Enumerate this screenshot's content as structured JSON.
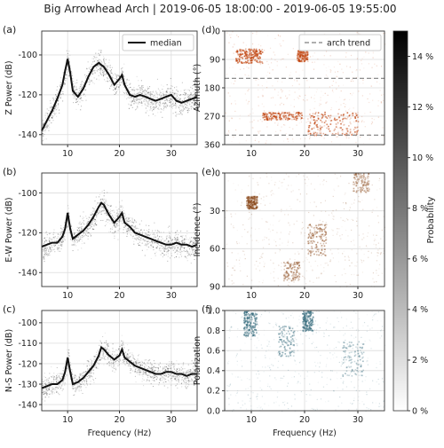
{
  "title": "Big Arrowhead Arch | 2019-06-05 18:00:00 - 2019-06-05 19:55:00",
  "colorbar": {
    "label": "Probability",
    "ticks": [
      "0 %",
      "2 %",
      "4 %",
      "6 %",
      "8 %",
      "10 %",
      "12 %",
      "14 %"
    ],
    "range": [
      0,
      15
    ]
  },
  "chart_data": [
    {
      "panel": "(a)",
      "type": "line",
      "xlabel": "",
      "ylabel": "Z Power (dB)",
      "xlim": [
        5,
        35
      ],
      "ylim": [
        -145,
        -88
      ],
      "xticks": [
        10,
        20,
        30
      ],
      "yticks": [
        -100,
        -120,
        -140
      ],
      "grid": true,
      "legend": {
        "entries": [
          "median"
        ],
        "placement": "top-right"
      },
      "color": "#111111",
      "series": [
        {
          "name": "median",
          "x": [
            5,
            6,
            7,
            8,
            9,
            9.5,
            10,
            10.5,
            11,
            12,
            13,
            14,
            15,
            16,
            16.5,
            17,
            18,
            19,
            20,
            20.5,
            21,
            22,
            23,
            24,
            25,
            26,
            27,
            28,
            29,
            30,
            31,
            32,
            33,
            34,
            35
          ],
          "y": [
            -138,
            -133,
            -128,
            -122,
            -115,
            -108,
            -102,
            -109,
            -118,
            -121,
            -117,
            -111,
            -106,
            -104,
            -105,
            -106,
            -110,
            -115,
            -112,
            -110,
            -115,
            -120,
            -121,
            -120,
            -121,
            -122,
            -123,
            -122,
            -121,
            -120,
            -123,
            -124,
            -123,
            -122,
            -121
          ]
        }
      ]
    },
    {
      "panel": "(b)",
      "type": "line",
      "xlabel": "",
      "ylabel": "E-W Power (dB)",
      "xlim": [
        5,
        35
      ],
      "ylim": [
        -147,
        -90
      ],
      "xticks": [
        10,
        20,
        30
      ],
      "yticks": [
        -100,
        -120,
        -140
      ],
      "grid": true,
      "color": "#111111",
      "series": [
        {
          "x": [
            5,
            6,
            7,
            8,
            9,
            9.5,
            10,
            10.5,
            11,
            12,
            13,
            14,
            15,
            16,
            16.5,
            17,
            18,
            19,
            20,
            20.5,
            21,
            22,
            23,
            24,
            25,
            26,
            27,
            28,
            29,
            30,
            31,
            32,
            33,
            34,
            35
          ],
          "y": [
            -127,
            -126,
            -125,
            -125,
            -122,
            -118,
            -110,
            -118,
            -123,
            -121,
            -119,
            -116,
            -112,
            -107,
            -105,
            -106,
            -111,
            -115,
            -112,
            -110,
            -115,
            -117,
            -120,
            -121,
            -122,
            -123,
            -124,
            -125,
            -126,
            -126,
            -125,
            -126,
            -126,
            -127,
            -126
          ]
        }
      ]
    },
    {
      "panel": "(c)",
      "type": "line",
      "xlabel": "Frequency (Hz)",
      "ylabel": "N-S Power (dB)",
      "xlim": [
        5,
        35
      ],
      "ylim": [
        -143,
        -94
      ],
      "xticks": [
        10,
        20,
        30
      ],
      "yticks": [
        -100,
        -110,
        -120,
        -130,
        -140
      ],
      "grid": true,
      "color": "#111111",
      "series": [
        {
          "x": [
            5,
            6,
            7,
            8,
            9,
            9.5,
            10,
            10.5,
            11,
            12,
            13,
            14,
            15,
            16,
            16.5,
            17,
            18,
            19,
            20,
            20.5,
            21,
            22,
            23,
            24,
            25,
            26,
            27,
            28,
            29,
            30,
            31,
            32,
            33,
            34,
            35
          ],
          "y": [
            -132,
            -131,
            -130,
            -130,
            -128,
            -124,
            -117,
            -124,
            -130,
            -129,
            -127,
            -124,
            -121,
            -116,
            -112,
            -113,
            -116,
            -118,
            -116,
            -113,
            -117,
            -119,
            -121,
            -122,
            -123,
            -124,
            -125,
            -125,
            -124,
            -124,
            -125,
            -125,
            -126,
            -125,
            -125
          ]
        }
      ]
    },
    {
      "panel": "(d)",
      "type": "heatmap",
      "xlabel": "",
      "ylabel": "Azimuth (°)",
      "xlim": [
        5,
        35
      ],
      "ylim": [
        360,
        0
      ],
      "xticks": [
        10,
        20,
        30
      ],
      "yticks": [
        0,
        90,
        180,
        270,
        360
      ],
      "grid": true,
      "color": "#c1440e",
      "legend": {
        "entries": [
          "arch trend"
        ],
        "placement": "top-right"
      },
      "reference_lines": [
        {
          "name": "arch trend",
          "y": [
            150,
            330
          ],
          "style": "dashed",
          "color": "#7f7f7f"
        }
      ],
      "clusters": [
        {
          "x": [
            7,
            12
          ],
          "y": [
            55,
            100
          ],
          "level": 0.95
        },
        {
          "x": [
            18.5,
            20.5
          ],
          "y": [
            60,
            95
          ],
          "level": 0.7
        },
        {
          "x": [
            12,
            19.5
          ],
          "y": [
            255,
            280
          ],
          "level": 0.85
        },
        {
          "x": [
            20.5,
            30
          ],
          "y": [
            255,
            330
          ],
          "level": 0.85
        }
      ]
    },
    {
      "panel": "(e)",
      "type": "heatmap",
      "xlabel": "",
      "ylabel": "Incidence (°)",
      "xlim": [
        5,
        35
      ],
      "ylim": [
        90,
        0
      ],
      "xticks": [
        10,
        20,
        30
      ],
      "yticks": [
        0,
        30,
        60,
        90
      ],
      "grid": true,
      "color": "#8b4a1c",
      "clusters": [
        {
          "x": [
            9,
            11
          ],
          "y": [
            18,
            28
          ],
          "level": 0.85
        },
        {
          "x": [
            20.5,
            24
          ],
          "y": [
            40,
            65
          ],
          "level": 0.6
        },
        {
          "x": [
            16,
            19
          ],
          "y": [
            70,
            85
          ],
          "level": 0.5
        },
        {
          "x": [
            29,
            32
          ],
          "y": [
            0,
            15
          ],
          "level": 0.45
        }
      ]
    },
    {
      "panel": "(f)",
      "type": "heatmap",
      "xlabel": "Frequency (Hz)",
      "ylabel": "Polarization",
      "xlim": [
        5,
        35
      ],
      "ylim": [
        0,
        1
      ],
      "xticks": [
        10,
        20,
        30
      ],
      "yticks": [
        0.0,
        0.2,
        0.4,
        0.6,
        0.8,
        1.0
      ],
      "grid": true,
      "color": "#3b6f80",
      "clusters": [
        {
          "x": [
            8.5,
            11
          ],
          "y": [
            0.75,
            1.0
          ],
          "level": 0.9
        },
        {
          "x": [
            19.5,
            21.5
          ],
          "y": [
            0.8,
            1.0
          ],
          "level": 0.85
        },
        {
          "x": [
            15,
            18
          ],
          "y": [
            0.55,
            0.85
          ],
          "level": 0.5
        },
        {
          "x": [
            27,
            31
          ],
          "y": [
            0.35,
            0.7
          ],
          "level": 0.4
        }
      ]
    }
  ]
}
